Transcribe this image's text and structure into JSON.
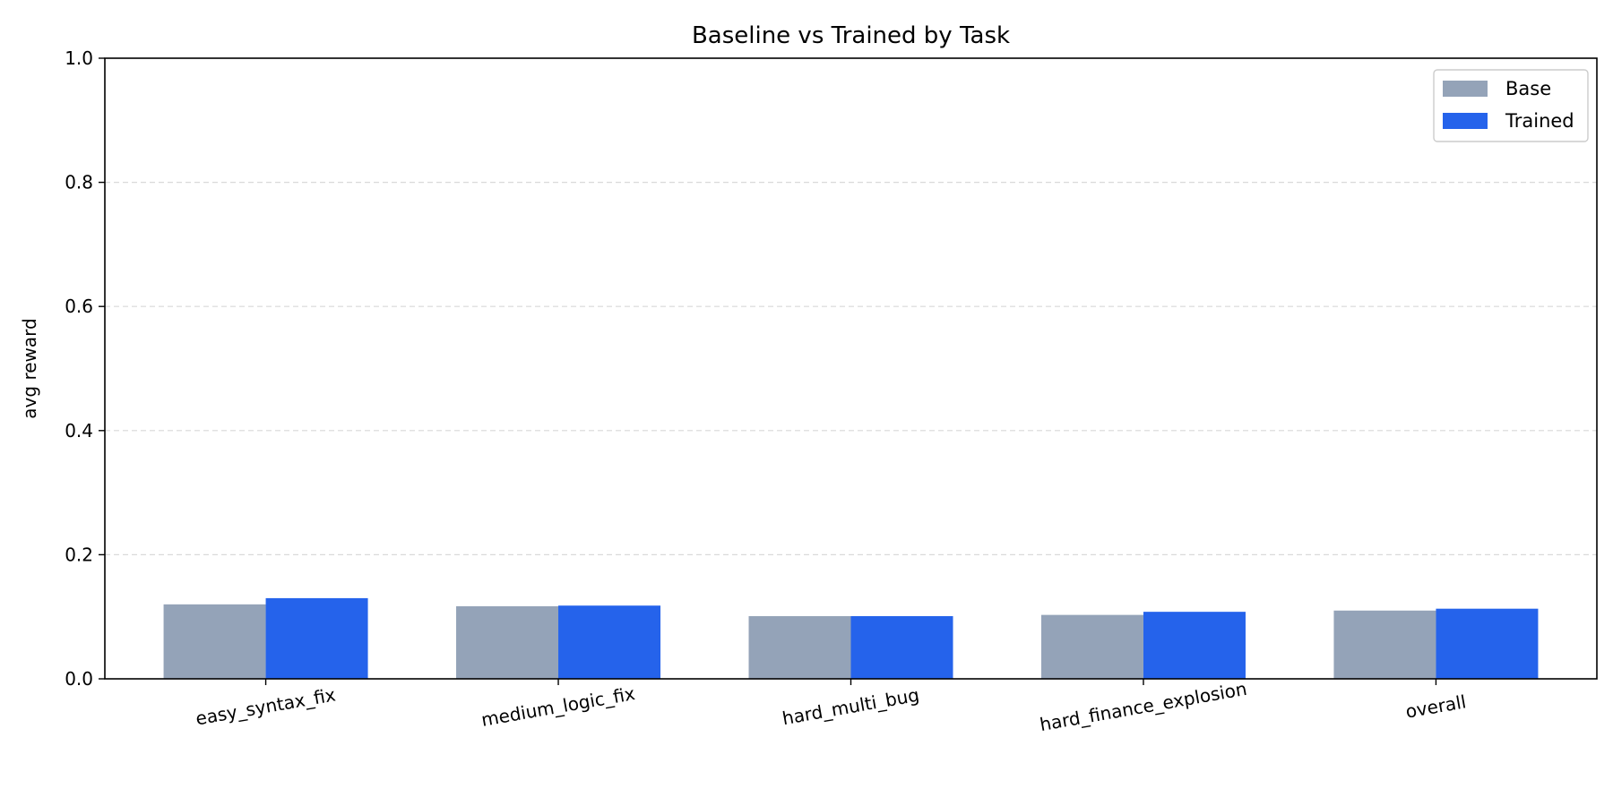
{
  "chart_data": {
    "type": "bar",
    "title": "Baseline vs Trained by Task",
    "xlabel": "",
    "ylabel": "avg reward",
    "categories": [
      "easy_syntax_fix",
      "medium_logic_fix",
      "hard_multi_bug",
      "hard_finance_explosion",
      "overall"
    ],
    "series": [
      {
        "name": "Base",
        "color": "#94a3b8",
        "values": [
          0.12,
          0.117,
          0.101,
          0.103,
          0.11
        ]
      },
      {
        "name": "Trained",
        "color": "#2563eb",
        "values": [
          0.13,
          0.118,
          0.101,
          0.108,
          0.113
        ]
      }
    ],
    "ylim": [
      0,
      1.0
    ],
    "yticks": [
      "0.0",
      "0.2",
      "0.4",
      "0.6",
      "0.8",
      "1.0"
    ],
    "grid": true,
    "legend_position": "top-right"
  }
}
